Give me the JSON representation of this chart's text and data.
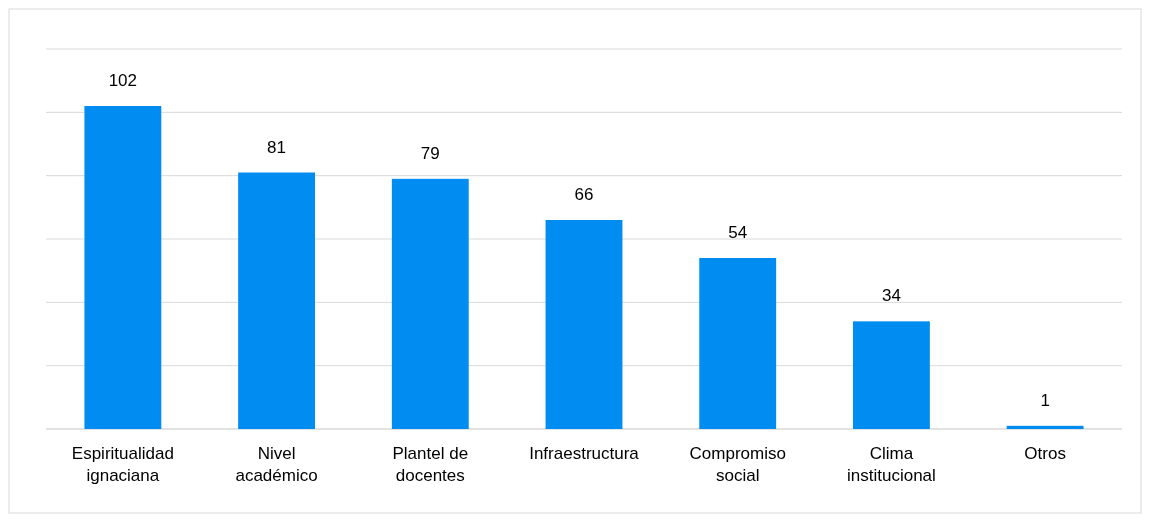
{
  "chart_data": {
    "type": "bar",
    "categories": [
      "Espiritualidad ignaciana",
      "Nivel académico",
      "Plantel de docentes",
      "Infraestructura",
      "Compromiso social",
      "Clima institucional",
      "Otros"
    ],
    "values": [
      102,
      81,
      79,
      66,
      54,
      34,
      1
    ],
    "color": "#008cf0",
    "ylim": [
      0,
      120
    ],
    "yticks": [
      {
        "value": 0,
        "label": null
      },
      {
        "value": 20,
        "label": null
      },
      {
        "value": 40,
        "label": null
      },
      {
        "value": 60,
        "label": null
      },
      {
        "value": 80,
        "label": null
      },
      {
        "value": 100,
        "label": null
      },
      {
        "value": 120,
        "label": null
      }
    ],
    "tick_labels": "x",
    "grid": "y",
    "data_labels": true
  }
}
